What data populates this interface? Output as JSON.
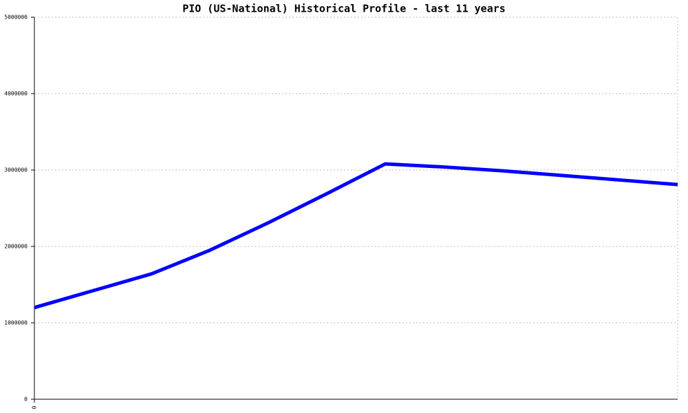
{
  "chart_data": {
    "type": "line",
    "title": "PIO (US-National) Historical Profile - last 11 years",
    "x": [
      0,
      1,
      2,
      3,
      4,
      5,
      6,
      7,
      8,
      9,
      10,
      11
    ],
    "series": [
      {
        "name": "PIO",
        "color": "#0000ff",
        "values": [
          1200000,
          1420000,
          1640000,
          1950000,
          2310000,
          2690000,
          3080000,
          3040000,
          2990000,
          2930000,
          2870000,
          2810000
        ]
      }
    ],
    "xlim": [
      0,
      11
    ],
    "xticks": [
      0
    ],
    "ylim": [
      0,
      5000000
    ],
    "yticks": [
      0,
      1000000,
      2000000,
      3000000,
      4000000,
      5000000
    ],
    "grid": true
  }
}
